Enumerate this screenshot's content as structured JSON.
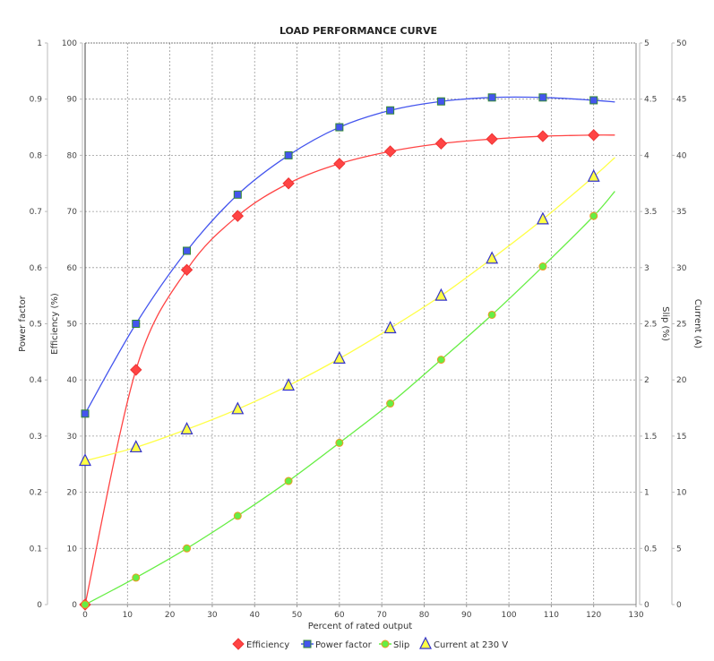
{
  "chart_data": {
    "type": "line",
    "title": "LOAD PERFORMANCE CURVE",
    "xlabel": "Percent of rated output",
    "xlim": [
      0,
      130
    ],
    "x_ticks": [
      0,
      10,
      20,
      30,
      40,
      50,
      60,
      70,
      80,
      90,
      100,
      110,
      120,
      130
    ],
    "grid": true,
    "legend_position": "bottom",
    "axes": {
      "power_factor": {
        "label": "Power factor",
        "side": "left-outer",
        "range": [
          0,
          1
        ],
        "ticks": [
          "0",
          "0.1",
          "0.2",
          "0.3",
          "0.4",
          "0.5",
          "0.6",
          "0.7",
          "0.8",
          "0.9",
          "1"
        ]
      },
      "efficiency": {
        "label": "Efficiency (%)",
        "side": "left-inner",
        "range": [
          0,
          100
        ],
        "ticks": [
          "0",
          "10",
          "20",
          "30",
          "40",
          "50",
          "60",
          "70",
          "80",
          "90",
          "100"
        ]
      },
      "slip": {
        "label": "Slip (%)",
        "side": "right-inner",
        "range": [
          0,
          5
        ],
        "ticks": [
          "0",
          "0.5",
          "1",
          "1.5",
          "2",
          "2.5",
          "3",
          "3.5",
          "4",
          "4.5",
          "5"
        ]
      },
      "current": {
        "label": "Current (A)",
        "side": "right-outer",
        "range": [
          0,
          50
        ],
        "ticks": [
          "0",
          "5",
          "10",
          "15",
          "20",
          "25",
          "30",
          "35",
          "40",
          "45",
          "50"
        ]
      }
    },
    "x": [
      0,
      12,
      24,
      36,
      48,
      60,
      72,
      84,
      96,
      108,
      120
    ],
    "curve_x_end": 125,
    "series": [
      {
        "name": "Efficiency",
        "axis": "efficiency",
        "color": "#ff4444",
        "marker": "diamond",
        "values": [
          0,
          41.8,
          59.6,
          69.2,
          75.0,
          78.5,
          80.7,
          82.1,
          82.9,
          83.4,
          83.6
        ],
        "curve_end_value": 83.6
      },
      {
        "name": "Power factor",
        "axis": "power_factor",
        "color": "#4455ee",
        "marker": "square",
        "values": [
          0.34,
          0.5,
          0.63,
          0.73,
          0.8,
          0.85,
          0.88,
          0.896,
          0.903,
          0.903,
          0.898
        ],
        "curve_end_value": 0.895
      },
      {
        "name": "Slip",
        "axis": "slip",
        "color": "#66ee44",
        "marker": "circle",
        "values": [
          0,
          0.24,
          0.5,
          0.79,
          1.1,
          1.44,
          1.79,
          2.18,
          2.58,
          3.01,
          3.46
        ],
        "curve_end_value": 3.68
      },
      {
        "name": "Current at 230 V",
        "axis": "current",
        "color": "#ffff44",
        "marker": "triangle",
        "values": [
          12.8,
          14.0,
          15.6,
          17.4,
          19.5,
          21.9,
          24.6,
          27.5,
          30.8,
          34.3,
          38.1
        ],
        "curve_end_value": 39.8
      }
    ]
  },
  "legend": {
    "items": [
      {
        "label": "Efficiency"
      },
      {
        "label": "Power factor"
      },
      {
        "label": "Slip"
      },
      {
        "label": "Current at 230 V"
      }
    ]
  }
}
